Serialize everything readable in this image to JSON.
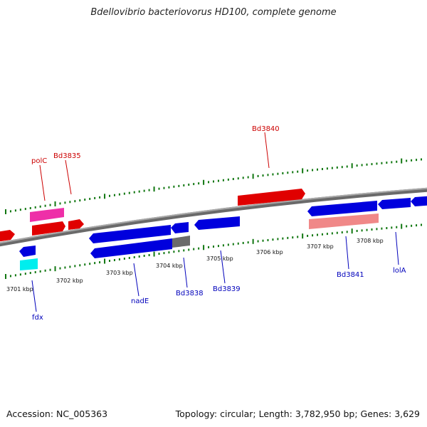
{
  "title": "Bdellovibrio bacteriovorus HD100, complete genome",
  "footer": {
    "accession": "Accession: NC_005363",
    "summary": "Topology: circular; Length: 3,782,950 bp; Genes: 3,629"
  },
  "colors": {
    "forward": "#ee0000",
    "reverse": "#0000dd",
    "backbone": "#808080",
    "tick": "#117711",
    "fwd_label": "#cc0000",
    "rev_label": "#0000bb"
  },
  "scale_labels": [
    "3701 kbp",
    "3702 kbp",
    "3703 kbp",
    "3704 kbp",
    "3705 kbp",
    "3706 kbp",
    "3707 kbp",
    "3708 kbp"
  ],
  "gene_labels": {
    "forward": [
      "polC",
      "Bd3835",
      "Bd3840"
    ],
    "reverse": [
      "fdx",
      "nadE",
      "Bd3838",
      "Bd3839",
      "Bd3841",
      "lolA"
    ]
  }
}
